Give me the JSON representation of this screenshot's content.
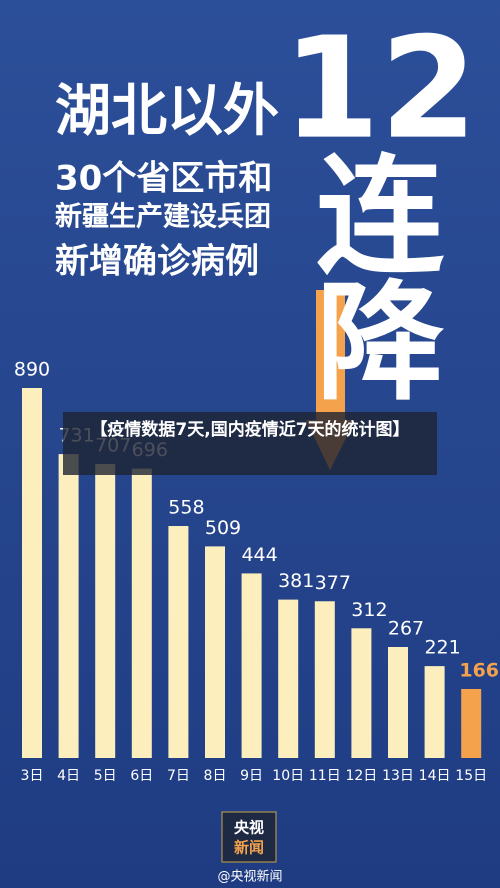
{
  "headline": {
    "lines": [
      "湖北以外",
      "30个省区市和",
      "新疆生产建设兵团",
      "新增确诊病例"
    ]
  },
  "banner": [
    "12",
    "连",
    "降"
  ],
  "caption": "【疫情数据7天,国内疫情近7天的统计图】",
  "logo": [
    "央视",
    "新闻"
  ],
  "watermark": "@央视新闻",
  "chart_data": {
    "type": "bar",
    "categories": [
      "3日",
      "4日",
      "5日",
      "6日",
      "7日",
      "8日",
      "9日",
      "10日",
      "11日",
      "12日",
      "13日",
      "14日",
      "15日"
    ],
    "values": [
      890,
      731,
      707,
      696,
      558,
      509,
      444,
      381,
      377,
      312,
      267,
      221,
      166
    ],
    "colors": [
      "#fcefbd",
      "#fcefbd",
      "#fcefbd",
      "#fcefbd",
      "#fcefbd",
      "#fcefbd",
      "#fcefbd",
      "#fcefbd",
      "#fcefbd",
      "#fcefbd",
      "#fcefbd",
      "#fcefbd",
      "#f4a24c"
    ],
    "label_colors": [
      "#ffffff",
      "#ffffff",
      "#ffffff",
      "#ffffff",
      "#ffffff",
      "#ffffff",
      "#ffffff",
      "#ffffff",
      "#ffffff",
      "#ffffff",
      "#ffffff",
      "#ffffff",
      "#f4a24c"
    ]
  }
}
